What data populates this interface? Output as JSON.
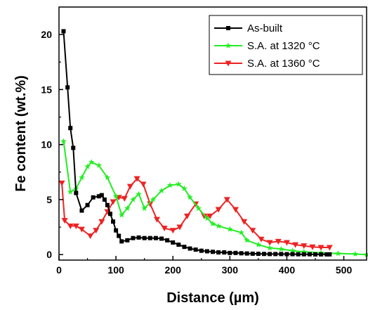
{
  "chart_data": {
    "type": "line",
    "title": "",
    "xlabel": "Distance (µm)",
    "ylabel": "Fe content (wt.%)",
    "xlim": [
      0,
      540
    ],
    "ylim": [
      -0.5,
      22.5
    ],
    "xticks": [
      0,
      100,
      200,
      300,
      400,
      500
    ],
    "yticks": [
      0,
      5,
      10,
      15,
      20
    ],
    "grid": false,
    "legend_position": "top-right",
    "series": [
      {
        "name": "As-built",
        "color": "#000000",
        "marker": "square",
        "x": [
          8,
          15,
          20,
          25,
          30,
          40,
          50,
          60,
          70,
          75,
          80,
          85,
          90,
          95,
          100,
          105,
          110,
          120,
          130,
          140,
          150,
          160,
          170,
          180,
          190,
          200,
          210,
          220,
          230,
          240,
          250,
          260,
          270,
          280,
          290,
          300,
          310,
          320,
          330,
          340,
          350,
          360,
          370,
          380,
          390,
          400,
          410,
          420,
          430,
          440,
          450,
          460,
          470,
          475
        ],
        "y": [
          20.3,
          15.2,
          11.5,
          9.7,
          5.6,
          4.0,
          4.5,
          5.2,
          5.3,
          5.4,
          5.0,
          4.5,
          3.7,
          3.0,
          2.2,
          1.7,
          1.2,
          1.3,
          1.5,
          1.55,
          1.5,
          1.5,
          1.5,
          1.45,
          1.3,
          1.1,
          0.9,
          0.7,
          0.55,
          0.45,
          0.35,
          0.3,
          0.25,
          0.2,
          0.2,
          0.15,
          0.15,
          0.12,
          0.1,
          0.08,
          0.07,
          0.06,
          0.05,
          0.05,
          0.05,
          0.04,
          0.04,
          0.03,
          0.03,
          0.03,
          0.02,
          0.02,
          0.02,
          0.02
        ]
      },
      {
        "name": "S.A. at 1320 °C",
        "color": "#22ee22",
        "marker": "star",
        "x": [
          8,
          20,
          30,
          40,
          50,
          57,
          70,
          85,
          100,
          110,
          120,
          130,
          140,
          150,
          165,
          180,
          195,
          210,
          220,
          230,
          245,
          260,
          270,
          280,
          300,
          320,
          330,
          350,
          370,
          390,
          410,
          430,
          460,
          490,
          520,
          540
        ],
        "y": [
          10.3,
          5.7,
          6.0,
          7.0,
          8.0,
          8.4,
          8.1,
          7.0,
          5.3,
          3.6,
          4.2,
          5.0,
          5.5,
          4.2,
          5.0,
          5.8,
          6.3,
          6.4,
          6.0,
          5.2,
          4.2,
          3.3,
          2.8,
          2.6,
          2.3,
          2.0,
          1.3,
          0.9,
          0.6,
          0.5,
          0.35,
          0.25,
          0.15,
          0.1,
          0.05,
          0.0
        ]
      },
      {
        "name": "S.A. at 1360 °C",
        "color": "#ee2222",
        "marker": "triangle-down",
        "x": [
          5,
          10,
          20,
          30,
          40,
          55,
          65,
          75,
          85,
          95,
          105,
          115,
          125,
          137,
          148,
          160,
          172,
          185,
          200,
          212,
          225,
          240,
          255,
          265,
          280,
          295,
          310,
          325,
          340,
          355,
          370,
          385,
          400,
          415,
          430,
          445,
          460,
          475
        ],
        "y": [
          6.5,
          3.1,
          2.6,
          2.6,
          2.3,
          1.7,
          2.2,
          3.0,
          3.9,
          4.8,
          5.2,
          5.1,
          6.2,
          6.9,
          6.4,
          4.6,
          3.2,
          2.4,
          2.2,
          2.5,
          3.5,
          4.6,
          3.5,
          3.5,
          4.1,
          5.0,
          4.1,
          3.0,
          2.2,
          1.4,
          1.1,
          1.2,
          1.1,
          0.9,
          0.8,
          0.7,
          0.65,
          0.65
        ]
      }
    ]
  }
}
